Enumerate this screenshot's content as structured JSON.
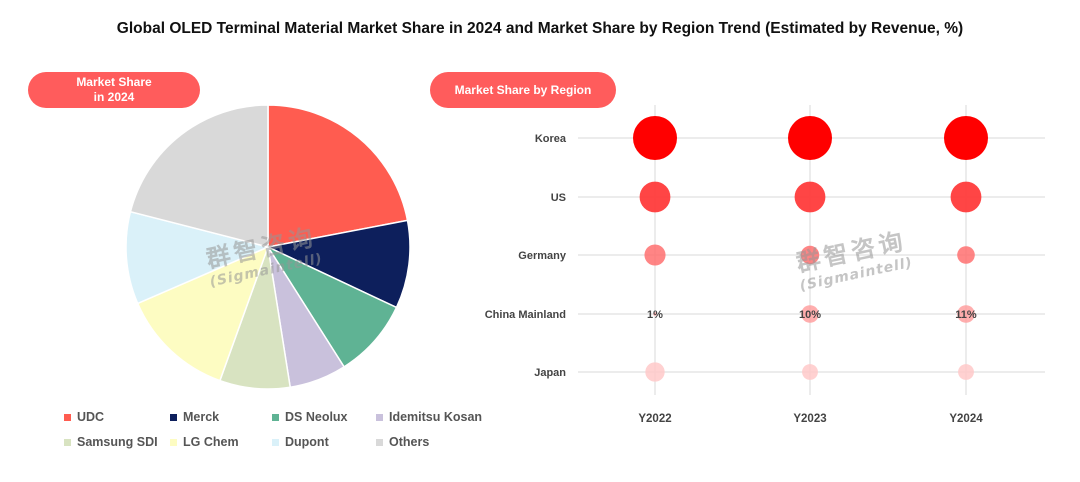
{
  "page": {
    "title": "Global OLED Terminal Material Market Share in 2024 and Market Share by Region Trend (Estimated by Revenue, %)",
    "left_panel_label_line1": "Market Share",
    "left_panel_label_line2": "in 2024",
    "right_panel_label": "Market Share by Region",
    "watermark_cn": "群智咨询",
    "watermark_en": "(Sigmaintell)"
  },
  "chart_data": [
    {
      "type": "pie",
      "title": "Market Share in 2024",
      "slices": [
        {
          "label": "UDC",
          "value": 22,
          "color": "#ff5c50"
        },
        {
          "label": "Merck",
          "value": 10,
          "color": "#0d1f5c"
        },
        {
          "label": "DS Neolux",
          "value": 9,
          "color": "#5fb394"
        },
        {
          "label": "Idemitsu Kosan",
          "value": 6.5,
          "color": "#c9c1dc"
        },
        {
          "label": "Samsung SDI",
          "value": 8,
          "color": "#d8e3c1"
        },
        {
          "label": "LG Chem",
          "value": 13,
          "color": "#fdfcc2"
        },
        {
          "label": "Dupont",
          "value": 10.5,
          "color": "#daf1f9"
        },
        {
          "label": "Others",
          "value": 21,
          "color": "#d9d9d9"
        }
      ],
      "legend": "bottom"
    },
    {
      "type": "scatter",
      "title": "Market Share by Region",
      "categories": [
        "Y2022",
        "Y2023",
        "Y2024"
      ],
      "rows": [
        "Korea",
        "US",
        "Germany",
        "China Mainland",
        "Japan"
      ],
      "series": [
        {
          "name": "Korea",
          "sizes": [
            5,
            5,
            5
          ],
          "color": "#ff0000",
          "opacity": 1.0,
          "labels": [
            "",
            "",
            ""
          ]
        },
        {
          "name": "US",
          "sizes": [
            3.5,
            3.5,
            3.5
          ],
          "color": "#ff3b3b",
          "opacity": 0.95,
          "labels": [
            "",
            "",
            ""
          ]
        },
        {
          "name": "Germany",
          "sizes": [
            2.4,
            2.1,
            2.0
          ],
          "color": "#ff7070",
          "opacity": 0.85,
          "labels": [
            "",
            "",
            ""
          ]
        },
        {
          "name": "China Mainland",
          "sizes": [
            0.4,
            2.0,
            2.0
          ],
          "color": "#ff9a9a",
          "opacity": 0.8,
          "labels": [
            "1%",
            "10%",
            "11%"
          ]
        },
        {
          "name": "Japan",
          "sizes": [
            2.2,
            1.8,
            1.8
          ],
          "color": "#ffc9c9",
          "opacity": 0.85,
          "labels": [
            "",
            "",
            ""
          ]
        }
      ],
      "grid": true
    }
  ]
}
